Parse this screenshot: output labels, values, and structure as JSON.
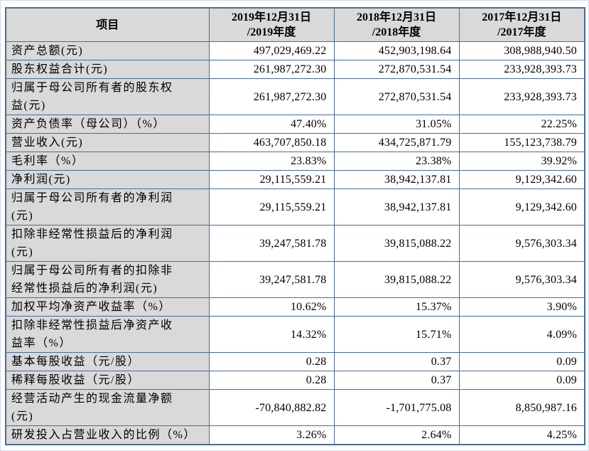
{
  "table": {
    "header": {
      "item": "项目",
      "periods": [
        "2019年12月31日\n/2019年度",
        "2018年12月31日\n/2018年度",
        "2017年12月31日\n/2017年度"
      ]
    },
    "rows": [
      {
        "label": "资产总额(元)",
        "values": [
          "497,029,469.22",
          "452,903,198.64",
          "308,988,940.50"
        ]
      },
      {
        "label": "股东权益合计(元)",
        "values": [
          "261,987,272.30",
          "272,870,531.54",
          "233,928,393.73"
        ]
      },
      {
        "label": "归属于母公司所有者的股东权\n益(元)",
        "values": [
          "261,987,272.30",
          "272,870,531.54",
          "233,928,393.73"
        ]
      },
      {
        "label": "资产负债率（母公司）（%）",
        "values": [
          "47.40%",
          "31.05%",
          "22.25%"
        ]
      },
      {
        "label": "营业收入(元)",
        "values": [
          "463,707,850.18",
          "434,725,871.79",
          "155,123,738.79"
        ]
      },
      {
        "label": "毛利率（%）",
        "values": [
          "23.83%",
          "23.38%",
          "39.92%"
        ]
      },
      {
        "label": "净利润(元)",
        "values": [
          "29,115,559.21",
          "38,942,137.81",
          "9,129,342.60"
        ]
      },
      {
        "label": "归属于母公司所有者的净利润\n(元)",
        "values": [
          "29,115,559.21",
          "38,942,137.81",
          "9,129,342.60"
        ]
      },
      {
        "label": "扣除非经常性损益后的净利润\n(元)",
        "values": [
          "39,247,581.78",
          "39,815,088.22",
          "9,576,303.34"
        ]
      },
      {
        "label": "归属于母公司所有者的扣除非\n经常性损益后的净利润(元)",
        "values": [
          "39,247,581.78",
          "39,815,088.22",
          "9,576,303.34"
        ]
      },
      {
        "label": "加权平均净资产收益率（%）",
        "values": [
          "10.62%",
          "15.37%",
          "3.90%"
        ]
      },
      {
        "label": "扣除非经常性损益后净资产收\n益率（%）",
        "values": [
          "14.32%",
          "15.71%",
          "4.09%"
        ]
      },
      {
        "label": "基本每股收益（元/股）",
        "values": [
          "0.28",
          "0.37",
          "0.09"
        ]
      },
      {
        "label": "稀释每股收益（元/股）",
        "values": [
          "0.28",
          "0.37",
          "0.09"
        ]
      },
      {
        "label": "经营活动产生的现金流量净额\n(元)",
        "values": [
          "-70,840,882.82",
          "-1,701,775.08",
          "8,850,987.16"
        ]
      },
      {
        "label": "研发投入占营业收入的比例（%）",
        "values": [
          "3.26%",
          "2.64%",
          "4.25%"
        ]
      }
    ]
  }
}
